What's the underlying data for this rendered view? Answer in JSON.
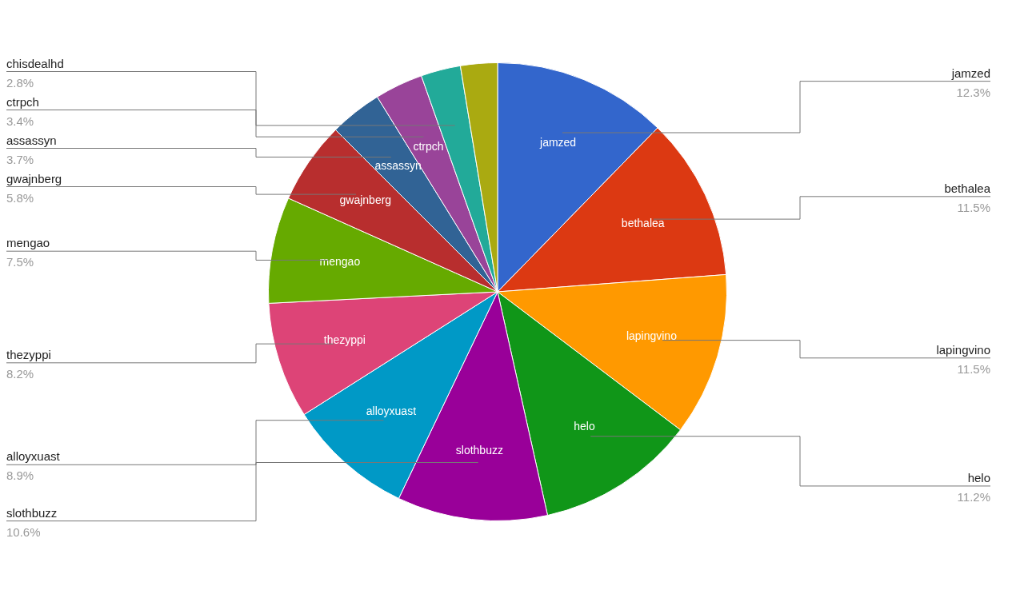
{
  "chart_data": {
    "type": "pie",
    "categories": [
      "jamzed",
      "bethalea",
      "lapingvino",
      "helo",
      "slothbuzz",
      "alloyxuast",
      "thezyppi",
      "mengao",
      "gwajnberg",
      "assassyn",
      "ctrpch",
      "chisdealhd",
      null
    ],
    "values": [
      12.3,
      11.5,
      11.5,
      11.2,
      10.6,
      8.9,
      8.2,
      7.5,
      5.8,
      3.7,
      3.4,
      2.8,
      2.6
    ],
    "value_labels": [
      "12.3%",
      "11.5%",
      "11.5%",
      "11.2%",
      "10.6%",
      "8.9%",
      "8.2%",
      "7.5%",
      "5.8%",
      "3.7%",
      "3.4%",
      "2.8%",
      null
    ],
    "colors": [
      "#3366cc",
      "#dc3912",
      "#ff9900",
      "#109618",
      "#990099",
      "#0099c6",
      "#dd4477",
      "#66aa00",
      "#b82e2e",
      "#316395",
      "#994499",
      "#22aa99",
      "#aaaa11"
    ],
    "legend": false
  }
}
